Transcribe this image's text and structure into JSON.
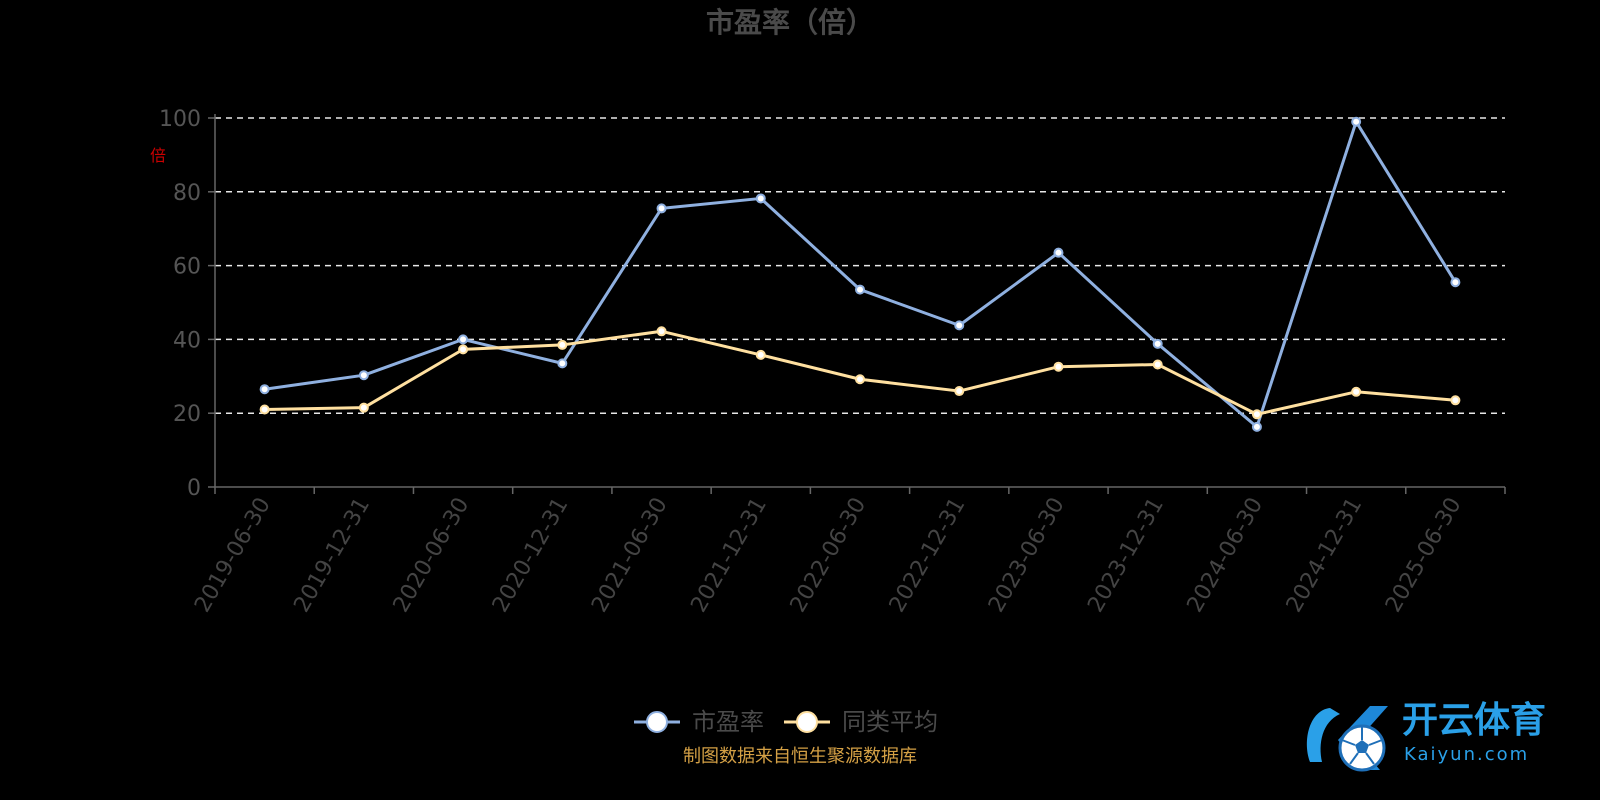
{
  "chart_data": {
    "type": "line",
    "title": "市盈率（倍）",
    "ylabel": "倍",
    "ylim": [
      0,
      100
    ],
    "yticks": [
      0,
      20,
      40,
      60,
      80,
      100
    ],
    "grid": true,
    "legend_position": "bottom-center",
    "categories": [
      "2019-06-30",
      "2019-12-31",
      "2020-06-30",
      "2020-12-31",
      "2021-06-30",
      "2021-12-31",
      "2022-06-30",
      "2022-12-31",
      "2023-06-30",
      "2023-12-31",
      "2024-06-30",
      "2024-12-31",
      "2025-06-30"
    ],
    "series": [
      {
        "name": "市盈率",
        "color": "#8fb0e0",
        "values": [
          26.5,
          30.3,
          40.0,
          33.5,
          75.5,
          78.2,
          53.5,
          43.8,
          63.5,
          38.8,
          16.3,
          99.0,
          55.5
        ]
      },
      {
        "name": "同类平均",
        "color": "#ffe0a0",
        "values": [
          21.0,
          21.5,
          37.3,
          38.5,
          42.2,
          35.8,
          29.2,
          26.0,
          32.6,
          33.2,
          19.7,
          25.8,
          23.5
        ]
      }
    ]
  },
  "source_note": "制图数据来自恒生聚源数据库",
  "watermark": {
    "name": "开云体育",
    "domain": "Kaiyun.com",
    "icon": "soccer-ball-icon",
    "brand_color": "#2aa0e8"
  }
}
